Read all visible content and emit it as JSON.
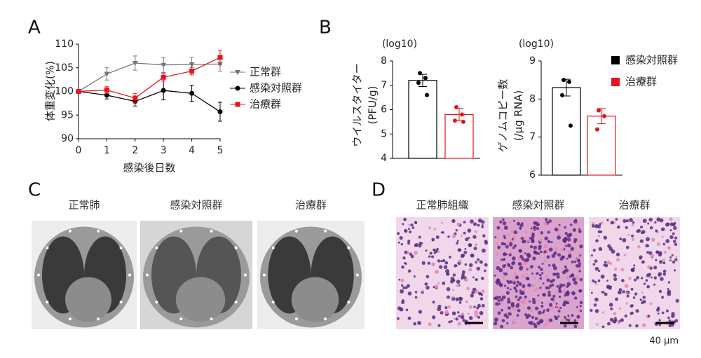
{
  "panels": {
    "a": "A",
    "b": "B",
    "c": "C",
    "d": "D"
  },
  "chart_data": [
    {
      "type": "line",
      "y_label": "体重変化(%)",
      "x_label": "感染後日数",
      "x": [
        0,
        1,
        2,
        3,
        4,
        5
      ],
      "xlim": [
        0,
        5
      ],
      "xticks": [
        0,
        1,
        2,
        3,
        4,
        5
      ],
      "ylim": [
        90,
        110
      ],
      "yticks": [
        90,
        95,
        100,
        105,
        110
      ],
      "legend": "right",
      "series": [
        {
          "name": "正常群",
          "color": "#777777",
          "marker": "triangle-down",
          "values": [
            100,
            103.7,
            106,
            105.6,
            105.7,
            105.8
          ],
          "errors": [
            0,
            1.3,
            1.5,
            1.6,
            1.5,
            1.5
          ]
        },
        {
          "name": "感染対照群",
          "color": "#000000",
          "marker": "circle",
          "values": [
            100,
            99.2,
            97.9,
            100.2,
            99.6,
            95.7
          ],
          "errors": [
            0,
            0.8,
            1,
            2,
            1.7,
            2
          ]
        },
        {
          "name": "治療群",
          "color": "#e8141b",
          "marker": "square",
          "values": [
            100,
            100.3,
            98.6,
            103,
            104.3,
            107.2
          ],
          "errors": [
            0,
            0.7,
            1,
            0.8,
            0.8,
            1.5
          ]
        }
      ]
    },
    {
      "type": "bar",
      "scale_label": "(log10)",
      "y_label": [
        "ウイルスタイター",
        "(PFU/g)"
      ],
      "ylim": [
        4,
        8
      ],
      "yticks": [
        4,
        5,
        6,
        7,
        8
      ],
      "series": [
        {
          "color": "#000000",
          "values": [
            7.2
          ],
          "errors": [
            0.25
          ],
          "points": [
            7.5,
            7.3,
            7.1,
            6.6
          ]
        },
        {
          "color": "#e8141b",
          "values": [
            5.8
          ],
          "errors": [
            0.25
          ],
          "points": [
            6.1,
            5.8,
            5.55,
            5.5
          ]
        }
      ]
    },
    {
      "type": "bar",
      "scale_label": "(log10)",
      "y_label": [
        "ゲノムコピー数",
        "(/µg RNA)"
      ],
      "ylim": [
        6,
        9
      ],
      "yticks": [
        6,
        7,
        8,
        9
      ],
      "legend": "right",
      "series": [
        {
          "name": "感染対照群",
          "color": "#000000",
          "values": [
            8.3
          ],
          "errors": [
            0.22
          ],
          "points": [
            8.5,
            8.45,
            8.1,
            7.3
          ]
        },
        {
          "name": "治療群",
          "color": "#e8141b",
          "values": [
            7.55
          ],
          "errors": [
            0.2
          ],
          "points": [
            7.7,
            7.55,
            7.2
          ]
        }
      ]
    }
  ],
  "ct_images": {
    "captions": [
      "正常肺",
      "感染対照群",
      "治療群"
    ]
  },
  "histology": {
    "captions": [
      "正常肺組織",
      "感染対照群",
      "治療群"
    ],
    "scale_bar_label": "40 μm"
  }
}
